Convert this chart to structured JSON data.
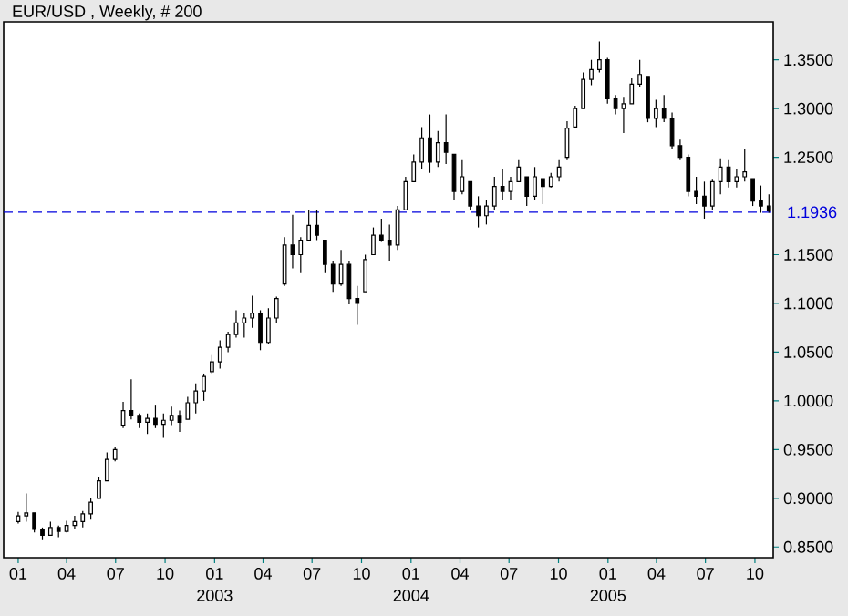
{
  "chart_data": {
    "type": "candlestick",
    "title": "EUR/USD , Weekly, # 200",
    "color": "#000000",
    "x": [
      "2002-01-01",
      "2002-01-16",
      "2002-01-31",
      "2002-02-15",
      "2002-03-02",
      "2002-03-17",
      "2002-04-01",
      "2002-04-16",
      "2002-05-01",
      "2002-05-16",
      "2002-05-31",
      "2002-06-15",
      "2002-06-30",
      "2002-07-15",
      "2002-07-30",
      "2002-08-14",
      "2002-08-29",
      "2002-09-13",
      "2002-09-28",
      "2002-10-13",
      "2002-10-28",
      "2002-11-12",
      "2002-11-27",
      "2002-12-12",
      "2002-12-27",
      "2003-01-11",
      "2003-01-26",
      "2003-02-10",
      "2003-02-25",
      "2003-03-12",
      "2003-03-27",
      "2003-04-11",
      "2003-04-26",
      "2003-05-11",
      "2003-05-26",
      "2003-06-10",
      "2003-06-25",
      "2003-07-10",
      "2003-07-25",
      "2003-08-09",
      "2003-08-24",
      "2003-09-08",
      "2003-09-23",
      "2003-10-08",
      "2003-10-23",
      "2003-11-07",
      "2003-11-22",
      "2003-12-07",
      "2003-12-22",
      "2004-01-06",
      "2004-01-21",
      "2004-02-05",
      "2004-02-20",
      "2004-03-06",
      "2004-03-21",
      "2004-04-05",
      "2004-04-20",
      "2004-05-05",
      "2004-05-20",
      "2004-06-04",
      "2004-06-19",
      "2004-07-04",
      "2004-07-19",
      "2004-08-03",
      "2004-08-18",
      "2004-09-02",
      "2004-09-17",
      "2004-10-02",
      "2004-10-17",
      "2004-11-01",
      "2004-11-16",
      "2004-12-01",
      "2004-12-16",
      "2004-12-31",
      "2005-01-15",
      "2005-01-30",
      "2005-02-14",
      "2005-03-01",
      "2005-03-16",
      "2005-03-31",
      "2005-04-15",
      "2005-04-30",
      "2005-05-15",
      "2005-05-30",
      "2005-06-14",
      "2005-06-29",
      "2005-07-14",
      "2005-07-29",
      "2005-08-13",
      "2005-08-28",
      "2005-09-12",
      "2005-09-27",
      "2005-10-12",
      "2005-10-27"
    ],
    "ohlc": [
      [
        0.876,
        0.886,
        0.874,
        0.882
      ],
      [
        0.882,
        0.905,
        0.876,
        0.885
      ],
      [
        0.885,
        0.885,
        0.865,
        0.868
      ],
      [
        0.868,
        0.87,
        0.857,
        0.862
      ],
      [
        0.862,
        0.876,
        0.862,
        0.87
      ],
      [
        0.87,
        0.872,
        0.86,
        0.866
      ],
      [
        0.866,
        0.877,
        0.865,
        0.872
      ],
      [
        0.872,
        0.882,
        0.868,
        0.876
      ],
      [
        0.876,
        0.887,
        0.87,
        0.884
      ],
      [
        0.884,
        0.9,
        0.878,
        0.896
      ],
      [
        0.9,
        0.922,
        0.9,
        0.918
      ],
      [
        0.918,
        0.947,
        0.918,
        0.94
      ],
      [
        0.94,
        0.953,
        0.938,
        0.95
      ],
      [
        0.975,
        0.999,
        0.972,
        0.99
      ],
      [
        0.99,
        1.022,
        0.981,
        0.985
      ],
      [
        0.985,
        0.987,
        0.972,
        0.978
      ],
      [
        0.978,
        0.987,
        0.966,
        0.982
      ],
      [
        0.982,
        0.996,
        0.972,
        0.976
      ],
      [
        0.976,
        0.987,
        0.962,
        0.98
      ],
      [
        0.98,
        0.994,
        0.975,
        0.985
      ],
      [
        0.985,
        0.99,
        0.968,
        0.978
      ],
      [
        0.981,
        1.004,
        0.981,
        0.998
      ],
      [
        0.998,
        1.018,
        0.987,
        1.01
      ],
      [
        1.01,
        1.028,
        1.0,
        1.025
      ],
      [
        1.03,
        1.047,
        1.028,
        1.04
      ],
      [
        1.04,
        1.062,
        1.033,
        1.055
      ],
      [
        1.055,
        1.071,
        1.05,
        1.068
      ],
      [
        1.068,
        1.093,
        1.065,
        1.08
      ],
      [
        1.08,
        1.09,
        1.065,
        1.085
      ],
      [
        1.085,
        1.108,
        1.075,
        1.09
      ],
      [
        1.09,
        1.093,
        1.052,
        1.06
      ],
      [
        1.06,
        1.095,
        1.058,
        1.085
      ],
      [
        1.085,
        1.107,
        1.08,
        1.105
      ],
      [
        1.12,
        1.168,
        1.118,
        1.16
      ],
      [
        1.16,
        1.191,
        1.136,
        1.15
      ],
      [
        1.15,
        1.168,
        1.131,
        1.165
      ],
      [
        1.165,
        1.196,
        1.165,
        1.18
      ],
      [
        1.18,
        1.196,
        1.165,
        1.17
      ],
      [
        1.165,
        1.165,
        1.131,
        1.14
      ],
      [
        1.14,
        1.144,
        1.112,
        1.12
      ],
      [
        1.12,
        1.155,
        1.118,
        1.14
      ],
      [
        1.14,
        1.144,
        1.099,
        1.105
      ],
      [
        1.105,
        1.118,
        1.078,
        1.1
      ],
      [
        1.112,
        1.15,
        1.112,
        1.145
      ],
      [
        1.15,
        1.178,
        1.15,
        1.17
      ],
      [
        1.17,
        1.187,
        1.163,
        1.165
      ],
      [
        1.165,
        1.181,
        1.144,
        1.16
      ],
      [
        1.16,
        1.2,
        1.155,
        1.196
      ],
      [
        1.196,
        1.23,
        1.196,
        1.225
      ],
      [
        1.225,
        1.253,
        1.225,
        1.245
      ],
      [
        1.245,
        1.281,
        1.238,
        1.27
      ],
      [
        1.27,
        1.294,
        1.234,
        1.245
      ],
      [
        1.245,
        1.277,
        1.24,
        1.265
      ],
      [
        1.265,
        1.294,
        1.243,
        1.255
      ],
      [
        1.253,
        1.253,
        1.206,
        1.215
      ],
      [
        1.215,
        1.247,
        1.212,
        1.23
      ],
      [
        1.225,
        1.225,
        1.196,
        1.2
      ],
      [
        1.2,
        1.21,
        1.178,
        1.19
      ],
      [
        1.19,
        1.206,
        1.181,
        1.2
      ],
      [
        1.2,
        1.23,
        1.196,
        1.22
      ],
      [
        1.22,
        1.238,
        1.206,
        1.215
      ],
      [
        1.215,
        1.23,
        1.206,
        1.225
      ],
      [
        1.225,
        1.247,
        1.225,
        1.24
      ],
      [
        1.23,
        1.23,
        1.2,
        1.21
      ],
      [
        1.21,
        1.24,
        1.206,
        1.23
      ],
      [
        1.228,
        1.228,
        1.202,
        1.22
      ],
      [
        1.22,
        1.234,
        1.219,
        1.23
      ],
      [
        1.23,
        1.247,
        1.225,
        1.24
      ],
      [
        1.25,
        1.287,
        1.247,
        1.28
      ],
      [
        1.281,
        1.303,
        1.281,
        1.3
      ],
      [
        1.3,
        1.337,
        1.3,
        1.33
      ],
      [
        1.33,
        1.35,
        1.324,
        1.34
      ],
      [
        1.34,
        1.369,
        1.337,
        1.35
      ],
      [
        1.35,
        1.352,
        1.305,
        1.31
      ],
      [
        1.31,
        1.314,
        1.294,
        1.3
      ],
      [
        1.3,
        1.312,
        1.275,
        1.305
      ],
      [
        1.305,
        1.331,
        1.305,
        1.325
      ],
      [
        1.325,
        1.35,
        1.322,
        1.335
      ],
      [
        1.333,
        1.333,
        1.286,
        1.29
      ],
      [
        1.29,
        1.309,
        1.281,
        1.3
      ],
      [
        1.3,
        1.314,
        1.286,
        1.29
      ],
      [
        1.29,
        1.296,
        1.258,
        1.262
      ],
      [
        1.262,
        1.268,
        1.247,
        1.25
      ],
      [
        1.25,
        1.253,
        1.21,
        1.215
      ],
      [
        1.215,
        1.23,
        1.202,
        1.21
      ],
      [
        1.21,
        1.225,
        1.187,
        1.2
      ],
      [
        1.2,
        1.228,
        1.196,
        1.225
      ],
      [
        1.225,
        1.249,
        1.212,
        1.24
      ],
      [
        1.24,
        1.247,
        1.219,
        1.225
      ],
      [
        1.225,
        1.238,
        1.219,
        1.23
      ],
      [
        1.23,
        1.258,
        1.225,
        1.235
      ],
      [
        1.228,
        1.228,
        1.2,
        1.205
      ],
      [
        1.205,
        1.221,
        1.193,
        1.2
      ],
      [
        1.2,
        1.212,
        1.193,
        1.195
      ]
    ],
    "xlim": [
      "2001-12-05",
      "2005-11-04"
    ],
    "xticks": [
      {
        "value": "2002-01-01",
        "label": "01"
      },
      {
        "value": "2002-04-01",
        "label": "04"
      },
      {
        "value": "2002-07-01",
        "label": "07"
      },
      {
        "value": "2002-10-01",
        "label": "10"
      },
      {
        "value": "2003-01-01",
        "label": "01"
      },
      {
        "value": "2003-04-01",
        "label": "04"
      },
      {
        "value": "2003-07-01",
        "label": "07"
      },
      {
        "value": "2003-10-01",
        "label": "10"
      },
      {
        "value": "2004-01-01",
        "label": "01"
      },
      {
        "value": "2004-04-01",
        "label": "04"
      },
      {
        "value": "2004-07-01",
        "label": "07"
      },
      {
        "value": "2004-10-01",
        "label": "10"
      },
      {
        "value": "2005-01-01",
        "label": "01"
      },
      {
        "value": "2005-04-01",
        "label": "04"
      },
      {
        "value": "2005-07-01",
        "label": "07"
      },
      {
        "value": "2005-10-01",
        "label": "10"
      }
    ],
    "ylim": [
      0.839,
      1.389
    ],
    "yticks": [
      {
        "value": 0.85,
        "label": "0.8500"
      },
      {
        "value": 0.9,
        "label": "0.9000"
      },
      {
        "value": 0.95,
        "label": "0.9500"
      },
      {
        "value": 1.0,
        "label": "1.0000"
      },
      {
        "value": 1.05,
        "label": "1.0500"
      },
      {
        "value": 1.1,
        "label": "1.1000"
      },
      {
        "value": 1.15,
        "label": "1.1500"
      },
      {
        "value": 1.25,
        "label": "1.2500"
      },
      {
        "value": 1.3,
        "label": "1.3000"
      },
      {
        "value": 1.35,
        "label": "1.3500"
      }
    ],
    "ref_lines": [
      {
        "axis": "y",
        "value": 1.1936,
        "label": "1.1936",
        "color": "#0000dd",
        "line_style": "dashed"
      }
    ],
    "annotations": [
      "2003",
      "2004",
      "2005"
    ]
  }
}
